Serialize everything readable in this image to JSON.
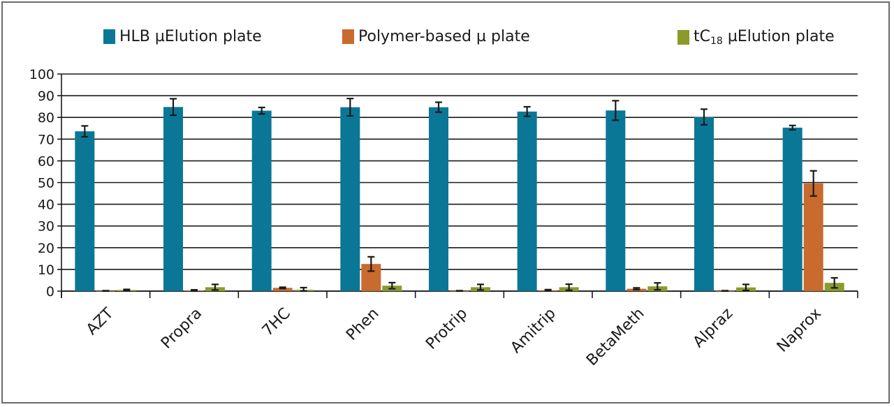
{
  "chart_data": {
    "type": "bar",
    "title": "",
    "xlabel": "",
    "ylabel": "",
    "ylim": [
      0,
      100
    ],
    "yticks": [
      0,
      10,
      20,
      30,
      40,
      50,
      60,
      70,
      80,
      90,
      100
    ],
    "grid": true,
    "legend_position": "top",
    "categories": [
      "AZT",
      "Propra",
      "7HC",
      "Phen",
      "Protrip",
      "Amitrip",
      "BetaMeth",
      "Alpraz",
      "Naprox"
    ],
    "series": [
      {
        "name": "HLB µElution plate",
        "color": "#0b7797",
        "values": [
          73.6,
          84.8,
          83.1,
          84.7,
          84.7,
          82.7,
          83.2,
          80.2,
          75.3
        ],
        "errors": [
          2.5,
          3.8,
          1.5,
          4.0,
          2.3,
          2.2,
          4.5,
          3.6,
          1.0
        ]
      },
      {
        "name": "Polymer-based µ plate",
        "color": "#c96a2f",
        "values": [
          0.1,
          0.3,
          1.5,
          12.5,
          0.1,
          0.4,
          1.1,
          0.1,
          49.6
        ],
        "errors": [
          0.1,
          0.3,
          0.3,
          3.3,
          0.1,
          0.3,
          0.4,
          0.1,
          5.8
        ]
      },
      {
        "name": "tC18 µElution plate",
        "color": "#8c9a2c",
        "values": [
          0.5,
          1.8,
          0.6,
          2.5,
          1.8,
          1.8,
          2.2,
          1.7,
          3.8
        ],
        "errors": [
          0.3,
          1.3,
          1.0,
          1.4,
          1.3,
          1.4,
          1.6,
          1.4,
          2.3
        ]
      }
    ]
  },
  "legend": {
    "items": [
      {
        "label": "HLB µElution plate",
        "color": "#0b7797"
      },
      {
        "label": "Polymer-based µ plate",
        "color": "#c96a2f"
      },
      {
        "label_prefix": "tC",
        "label_sub": "18",
        "label_suffix": " µElution plate",
        "color": "#8c9a2c"
      }
    ]
  }
}
